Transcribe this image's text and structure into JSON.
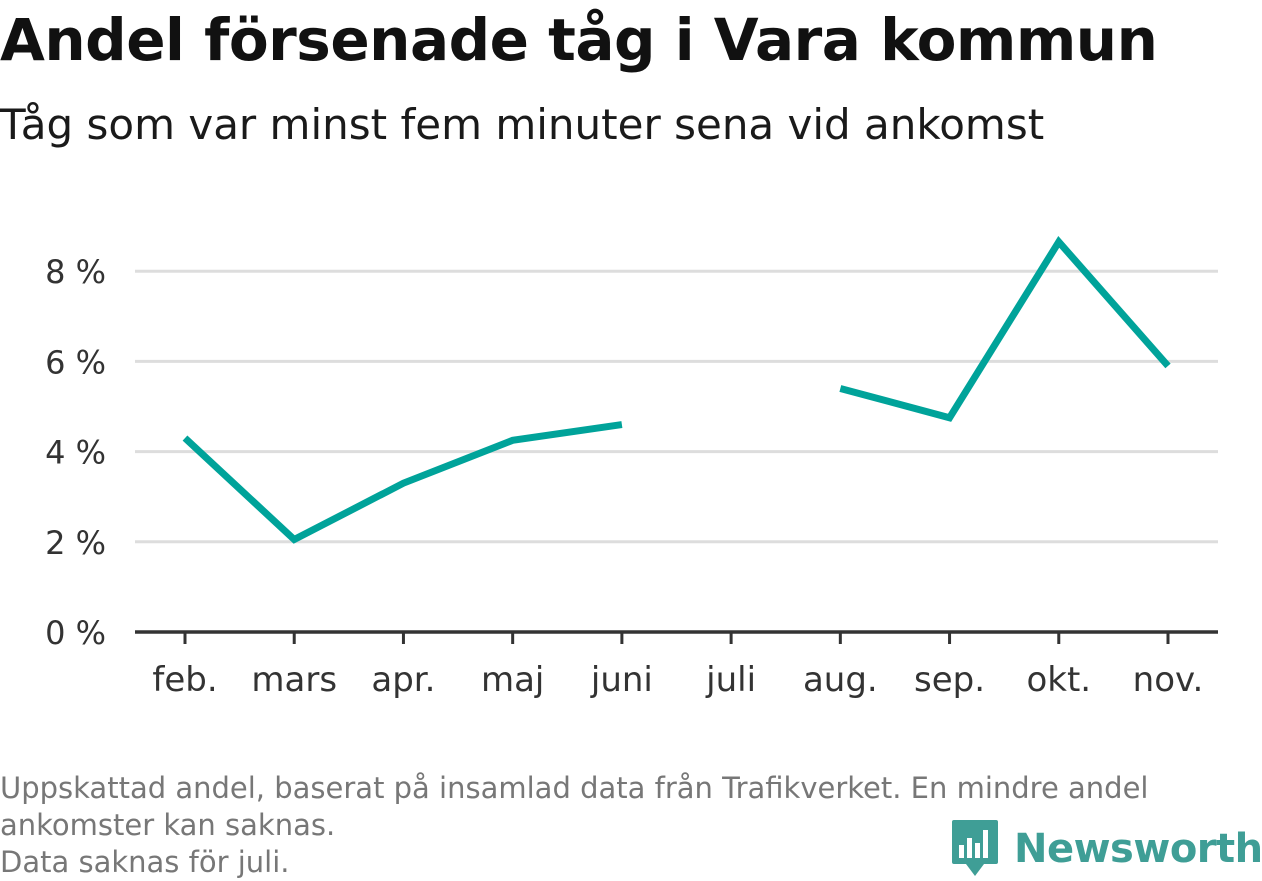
{
  "header": {
    "title": "Andel försenade tåg i Vara kommun",
    "subtitle": "Tåg som var minst fem minuter sena vid ankomst"
  },
  "chart_data": {
    "type": "line",
    "categories": [
      "feb.",
      "mars",
      "apr.",
      "maj",
      "juni",
      "juli",
      "aug.",
      "sep.",
      "okt.",
      "nov."
    ],
    "series": [
      {
        "values": [
          4.3,
          2.05,
          3.3,
          4.25,
          4.6,
          null,
          5.4,
          4.75,
          8.65,
          5.9
        ],
        "color": "#00a39a"
      }
    ],
    "yticks": [
      0,
      2,
      4,
      6,
      8
    ],
    "ytick_labels": [
      "0 %",
      "2 %",
      "4 %",
      "6 %",
      "8 %"
    ],
    "ylim": [
      0,
      9
    ],
    "grid": true
  },
  "footer": {
    "note_line1": "Uppskattad andel, baserat på insamlad data från Trafikverket. En mindre andel",
    "note_line2": "ankomster kan saknas.",
    "note_line3": "Data saknas för juli."
  },
  "brand": {
    "name": "Newsworthy",
    "icon": "newsworthy-logo-icon",
    "color": "#3f9e96"
  }
}
